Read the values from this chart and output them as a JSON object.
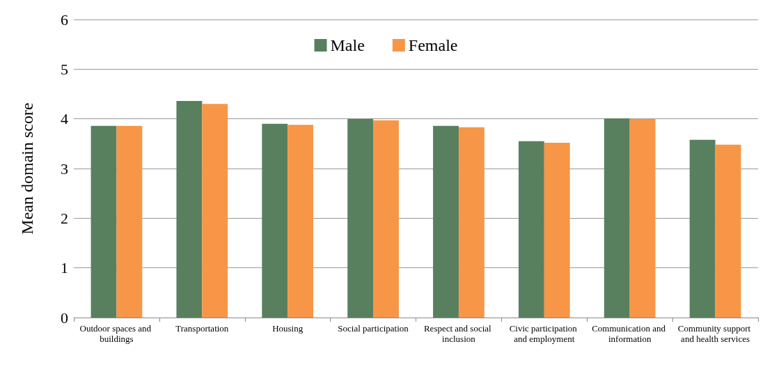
{
  "chart_data": {
    "type": "bar",
    "ylabel": "Mean domain score",
    "categories": [
      "Outdoor spaces and buildings",
      "Transportation",
      "Housing",
      "Social participation",
      "Respect and social inclusion",
      "Civic participation and employment",
      "Communication and information",
      "Community support and health services"
    ],
    "series": [
      {
        "name": "Male",
        "color": "#58805f",
        "values": [
          3.86,
          4.36,
          3.9,
          4.0,
          3.86,
          3.55,
          4.01,
          3.58
        ]
      },
      {
        "name": "Female",
        "color": "#f79646",
        "values": [
          3.86,
          4.3,
          3.88,
          3.97,
          3.83,
          3.52,
          4.0,
          3.48
        ]
      }
    ],
    "ylim": [
      0,
      6
    ],
    "yticks": [
      0,
      1,
      2,
      3,
      4,
      5,
      6
    ],
    "grid": "y",
    "legend": "top"
  }
}
